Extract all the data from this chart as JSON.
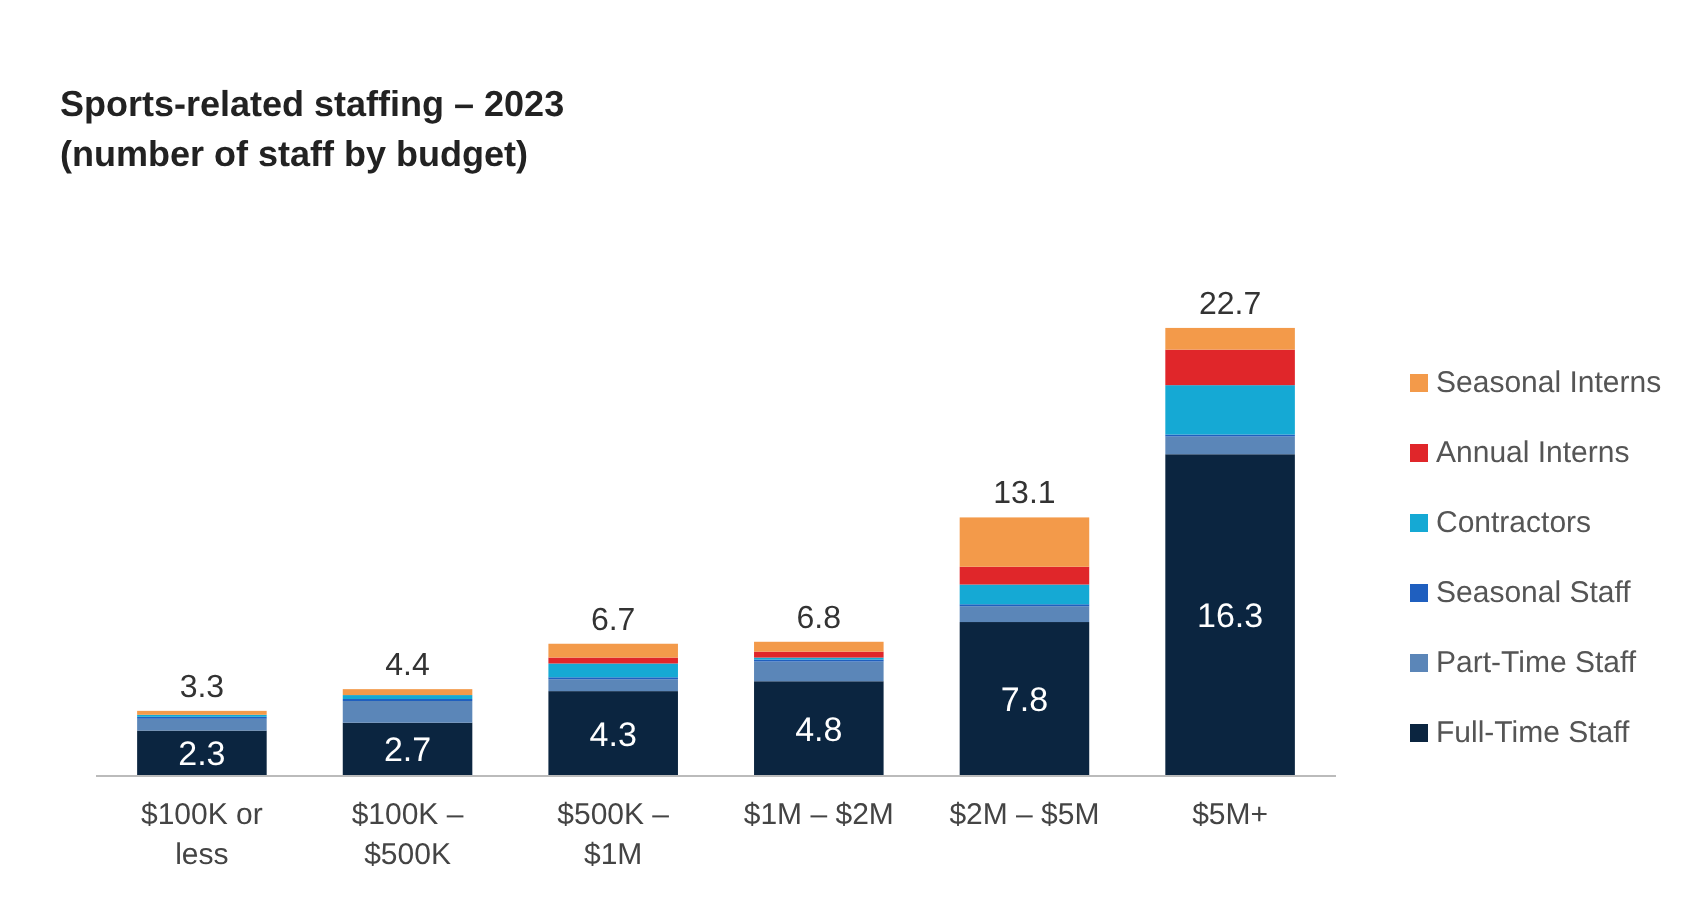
{
  "chart_data": {
    "type": "bar",
    "title": "Sports-related staffing – 2023",
    "subtitle": "(number of staff by budget)",
    "stacked": true,
    "legend": "right",
    "tick_labels": "x",
    "ylim": [
      0,
      23
    ],
    "categories": [
      "$100K or less",
      "$100K – $500K",
      "$500K – $1M",
      "$1M – $2M",
      "$2M – $5M",
      "$5M+"
    ],
    "series": [
      {
        "name": "Full-Time Staff",
        "color": "#0b2540",
        "values": [
          2.3,
          2.7,
          4.3,
          4.8,
          7.8,
          16.3
        ],
        "value_labels": [
          "2.3",
          "2.7",
          "4.3",
          "4.8",
          "7.8",
          "16.3"
        ]
      },
      {
        "name": "Part-Time Staff",
        "color": "#5b86b8",
        "values": [
          0.6,
          1.1,
          0.6,
          1.0,
          0.8,
          0.9
        ]
      },
      {
        "name": "Seasonal Staff",
        "color": "#1f5fbf",
        "values": [
          0.1,
          0.1,
          0.1,
          0.1,
          0.1,
          0.1
        ]
      },
      {
        "name": "Contractors",
        "color": "#15a9d4",
        "values": [
          0.1,
          0.2,
          0.7,
          0.1,
          1.0,
          2.5
        ]
      },
      {
        "name": "Annual Interns",
        "color": "#e0262a",
        "values": [
          0,
          0,
          0.3,
          0.3,
          0.9,
          1.8
        ]
      },
      {
        "name": "Seasonal Interns",
        "color": "#f39a4a",
        "values": [
          0.2,
          0.3,
          0.7,
          0.5,
          2.5,
          1.1
        ]
      }
    ],
    "totals": [
      "3.3",
      "4.4",
      "6.7",
      "6.8",
      "13.1",
      "22.7"
    ]
  }
}
